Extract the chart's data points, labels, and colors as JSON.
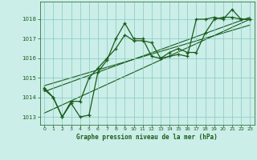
{
  "title": "Graphe pression niveau de la mer (hPa)",
  "bg_color": "#cbeee9",
  "line_color": "#1a5c1a",
  "grid_color": "#88c8c0",
  "xlim": [
    -0.5,
    23.5
  ],
  "ylim": [
    1012.6,
    1018.9
  ],
  "yticks": [
    1013,
    1014,
    1015,
    1016,
    1017,
    1018
  ],
  "xticks": [
    0,
    1,
    2,
    3,
    4,
    5,
    6,
    7,
    8,
    9,
    10,
    11,
    12,
    13,
    14,
    15,
    16,
    17,
    18,
    19,
    20,
    21,
    22,
    23
  ],
  "series1_x": [
    0,
    1,
    2,
    3,
    4,
    5,
    6,
    7,
    8,
    9,
    10,
    11,
    12,
    13,
    14,
    15,
    16,
    17,
    18,
    19,
    20,
    21,
    22,
    23
  ],
  "series1_y": [
    1014.5,
    1014.0,
    1013.0,
    1013.7,
    1013.0,
    1013.1,
    1015.3,
    1015.9,
    1017.0,
    1017.8,
    1017.0,
    1017.0,
    1016.1,
    1016.0,
    1016.1,
    1016.2,
    1016.1,
    1018.0,
    1018.0,
    1018.1,
    1018.0,
    1018.5,
    1018.0,
    1018.0
  ],
  "series2_x": [
    0,
    1,
    2,
    3,
    4,
    5,
    6,
    7,
    8,
    9,
    10,
    11,
    12,
    13,
    14,
    15,
    16,
    17,
    18,
    19,
    20,
    21,
    22,
    23
  ],
  "series2_y": [
    1014.4,
    1014.0,
    1013.0,
    1013.8,
    1013.8,
    1015.0,
    1015.5,
    1016.0,
    1016.5,
    1017.2,
    1016.9,
    1016.9,
    1016.8,
    1016.0,
    1016.3,
    1016.5,
    1016.3,
    1016.3,
    1017.3,
    1018.0,
    1018.1,
    1018.1,
    1018.0,
    1018.0
  ],
  "trend1_x": [
    0,
    23
  ],
  "trend1_y": [
    1013.2,
    1018.0
  ],
  "trend2_x": [
    0,
    23
  ],
  "trend2_y": [
    1014.3,
    1018.1
  ],
  "trend3_x": [
    0,
    23
  ],
  "trend3_y": [
    1014.6,
    1017.7
  ]
}
